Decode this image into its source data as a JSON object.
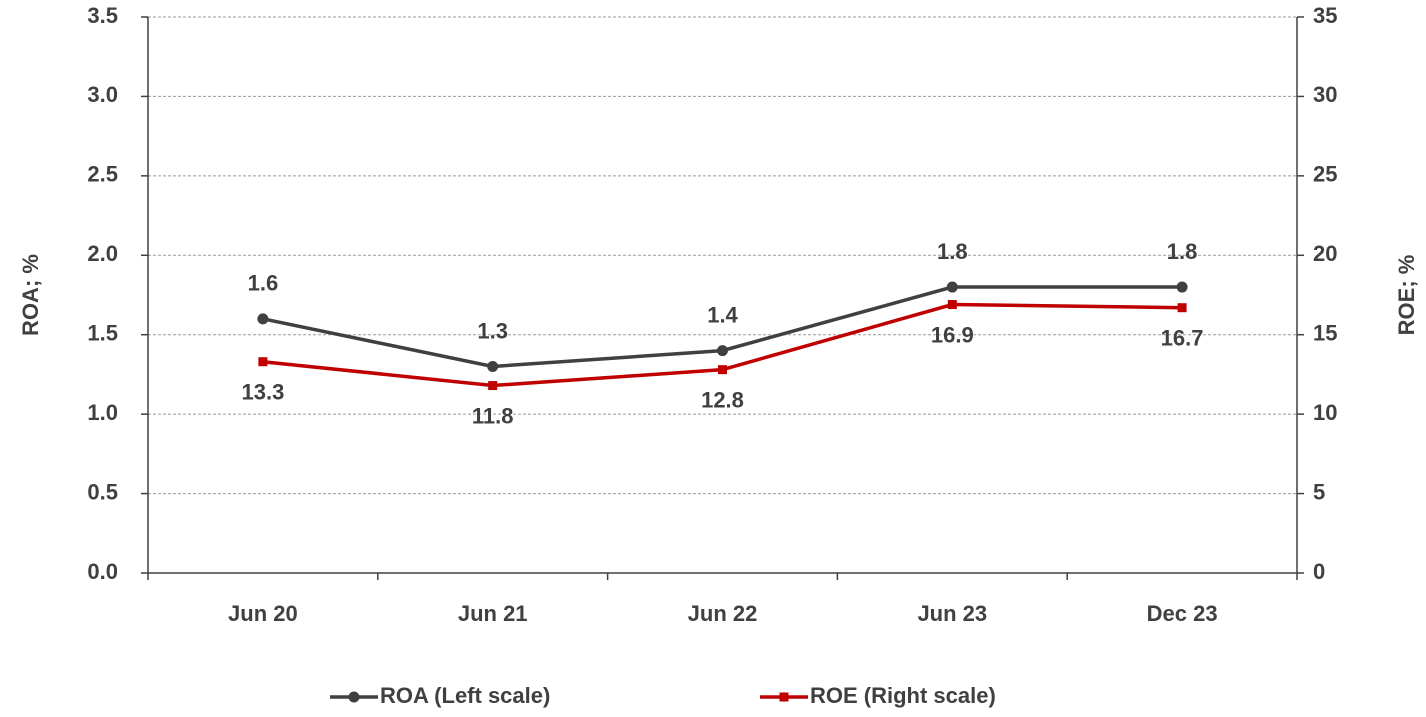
{
  "chart_data": {
    "type": "line",
    "categories": [
      "Jun 20",
      "Jun 21",
      "Jun 22",
      "Jun 23",
      "Dec 23"
    ],
    "series": [
      {
        "name": "ROA (Left scale)",
        "color": "#404040",
        "marker": "circle",
        "values": [
          1.6,
          1.3,
          1.4,
          1.8,
          1.8
        ]
      },
      {
        "name": "ROE (Right scale)",
        "color": "#c00000",
        "marker": "square",
        "axis": "y2",
        "values": [
          13.3,
          11.8,
          12.8,
          16.9,
          16.7
        ]
      }
    ],
    "ylabel": "ROA; %",
    "y2label": "ROE; %",
    "ylim": [
      0,
      3.5
    ],
    "yticks": [
      {
        "value": 0,
        "label": "0.0"
      },
      0.5,
      {
        "value": 1,
        "label": "1.0"
      },
      1.5,
      {
        "value": 2,
        "label": "2.0"
      },
      2.5,
      {
        "value": 3,
        "label": "3.0"
      },
      3.5
    ],
    "y2lim": [
      0,
      35
    ],
    "y2ticks": [
      0,
      5,
      10,
      15,
      20,
      25,
      30,
      35
    ],
    "grid": true,
    "legend": "bottom"
  }
}
